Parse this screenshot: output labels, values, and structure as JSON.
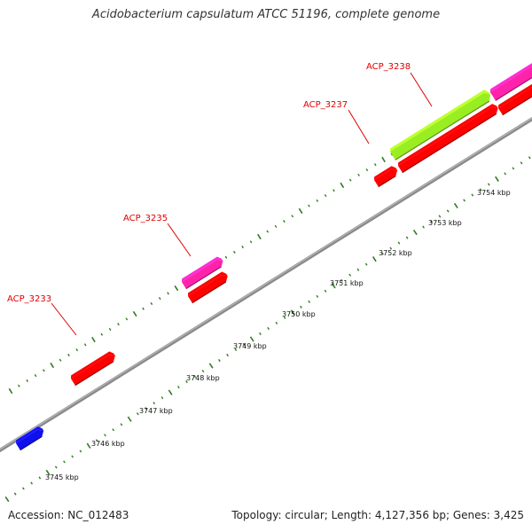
{
  "title": "Acidobacterium capsulatum ATCC 51196, complete genome",
  "accession": "Accession: NC_012483",
  "summary": "Topology: circular; Length: 4,127,356 bp; Genes: 3,425",
  "colors": {
    "backbone": "#7f7f7f",
    "tick": "#2e7d1e",
    "label": "#e00000",
    "cds_red": "#ff0000",
    "cds_pink": "#ff22aa",
    "cds_green": "#99ee22",
    "cds_blue": "#1010ee"
  },
  "scale_ticks": [
    "3745 kbp",
    "3746 kbp",
    "3747 kbp",
    "3748 kbp",
    "3749 kbp",
    "3750 kbp",
    "3751 kbp",
    "3752 kbp",
    "3753 kbp",
    "3754 kbp"
  ],
  "gene_labels": [
    "ACP_3233",
    "ACP_3235",
    "ACP_3237",
    "ACP_3238"
  ],
  "features": [
    {
      "type": "CDS",
      "color": "cds_blue",
      "track": "inner"
    },
    {
      "type": "CDS",
      "color": "cds_red",
      "track": "inner"
    },
    {
      "type": "CDS",
      "color": "cds_red",
      "track": "inner"
    },
    {
      "type": "CDS",
      "color": "cds_pink",
      "track": "outer"
    },
    {
      "type": "CDS",
      "color": "cds_red",
      "track": "inner"
    },
    {
      "type": "CDS",
      "color": "cds_red",
      "track": "inner"
    },
    {
      "type": "CDS",
      "color": "cds_green",
      "track": "outer"
    },
    {
      "type": "CDS",
      "color": "cds_pink",
      "track": "outer"
    },
    {
      "type": "CDS",
      "color": "cds_red",
      "track": "inner"
    }
  ]
}
